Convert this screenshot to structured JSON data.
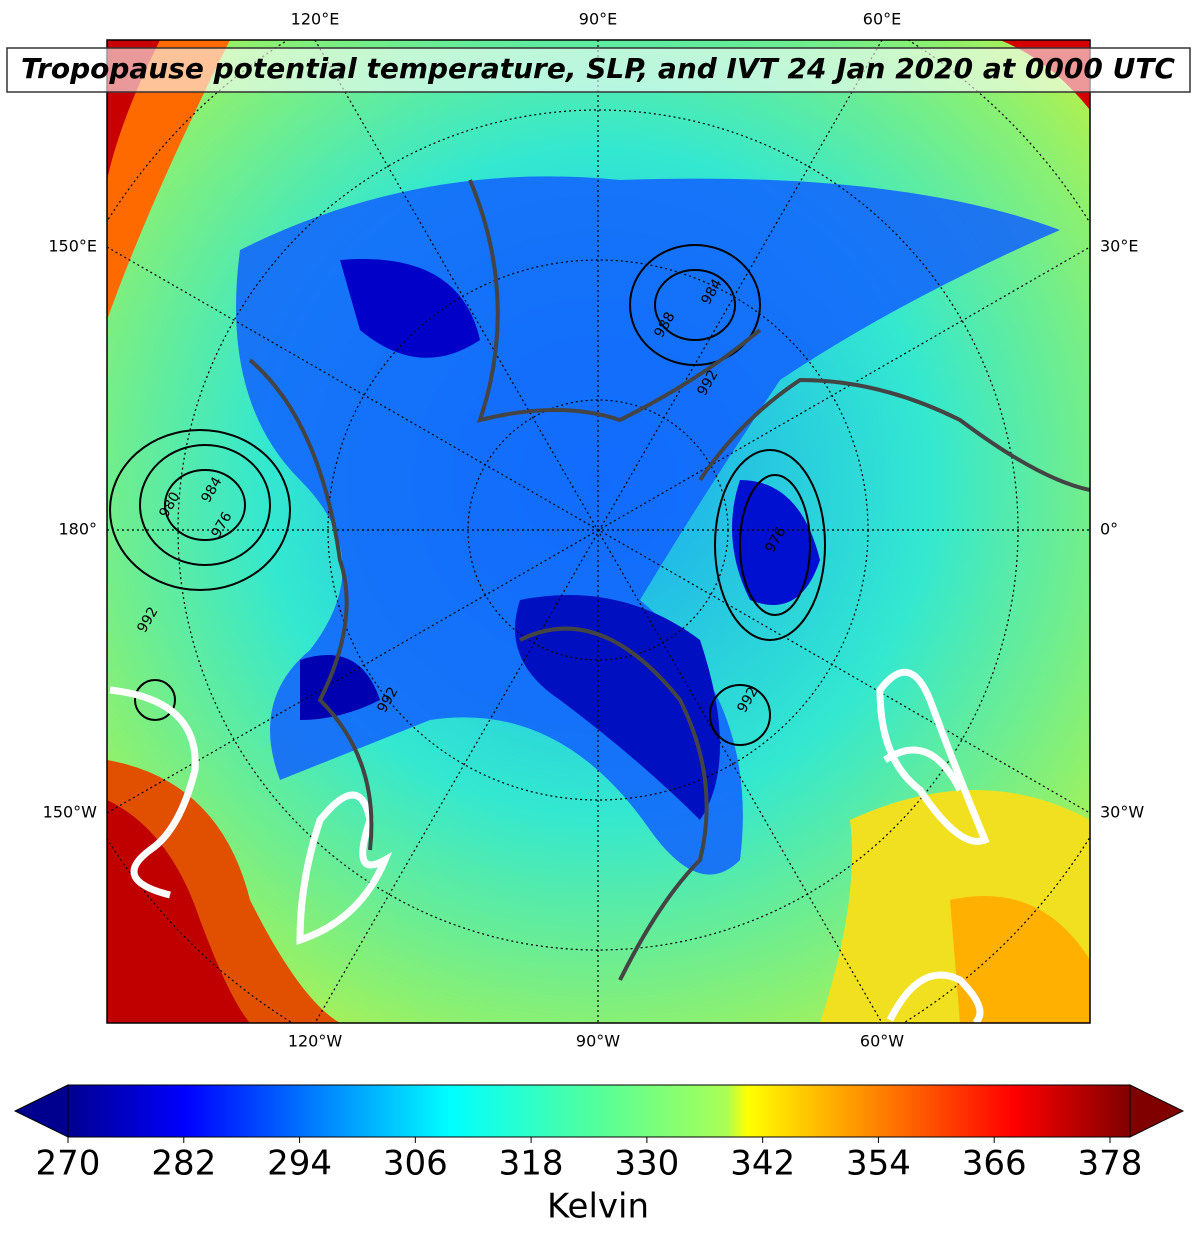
{
  "title": "Tropopause potential temperature, SLP, and IVT 24 Jan 2020 at 0000 UTC",
  "map": {
    "top_labels": [
      "120°E",
      "90°E",
      "60°E"
    ],
    "bottom_labels": [
      "120°W",
      "90°W",
      "60°W"
    ],
    "left_labels": [
      "150°E",
      "180°",
      "150°W"
    ],
    "right_labels": [
      "30°E",
      "0°",
      "30°W"
    ],
    "contour_labels": [
      "984",
      "980",
      "976",
      "992",
      "984",
      "988",
      "992",
      "976",
      "992",
      "992"
    ]
  },
  "colorbar": {
    "ticks": [
      270,
      282,
      294,
      306,
      318,
      330,
      342,
      354,
      366,
      378
    ],
    "label": "Kelvin"
  }
}
